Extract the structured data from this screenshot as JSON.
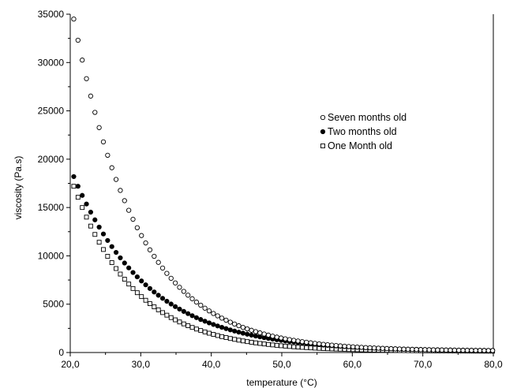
{
  "chart_data": {
    "type": "scatter",
    "title": "",
    "xlabel": "temperature (°C)",
    "ylabel": "viscosity (Pa.s)",
    "xlim": [
      20,
      80
    ],
    "ylim": [
      0,
      35000
    ],
    "xticks": [
      20,
      30,
      40,
      50,
      60,
      70,
      80
    ],
    "xtick_labels": [
      "20,0",
      "30,0",
      "40,0",
      "50,0",
      "60,0",
      "70,0",
      "80,0"
    ],
    "yticks": [
      0,
      5000,
      10000,
      15000,
      20000,
      25000,
      30000,
      35000
    ],
    "ytick_labels": [
      "0",
      "5000",
      "10000",
      "15000",
      "20000",
      "25000",
      "30000",
      "35000"
    ],
    "grid": false,
    "legend_position": "upper-right",
    "x_start": 20.5,
    "x_step": 0.6,
    "x_end": 80.2,
    "series": [
      {
        "name": "Seven months old",
        "marker": "circle-open",
        "color": "#000000",
        "y0": 34500,
        "decay_rate": 0.11,
        "y_floor": 150
      },
      {
        "name": "Two months old",
        "marker": "circle-filled",
        "color": "#000000",
        "y0": 18200,
        "decay_rate": 0.095,
        "y_floor": 150
      },
      {
        "name": "One Month old",
        "marker": "square-open",
        "color": "#000000",
        "y0": 17200,
        "decay_rate": 0.115,
        "y_floor": 120
      }
    ]
  }
}
